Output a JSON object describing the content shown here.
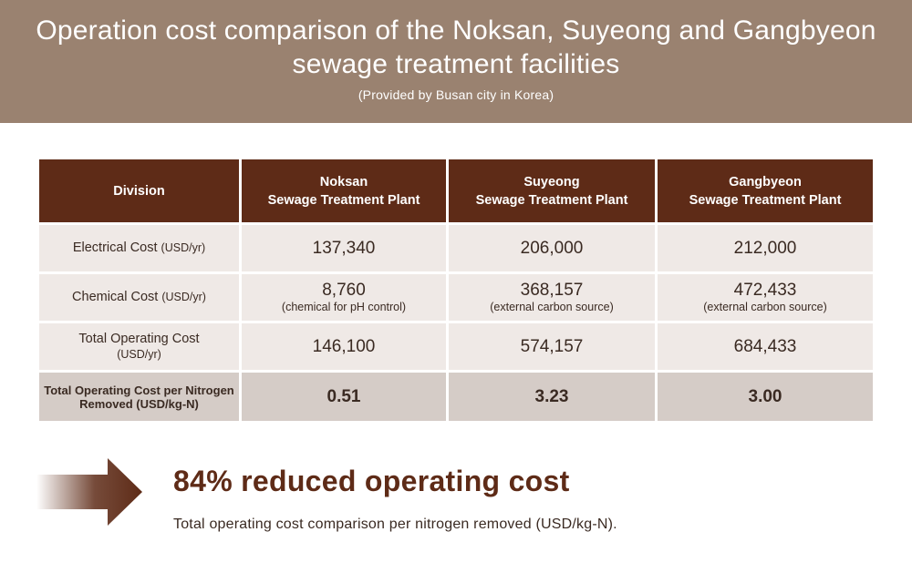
{
  "header": {
    "title_line1": "Operation cost comparison of the Noksan, Suyeong and Gangbyeon",
    "title_line2": "sewage treatment facilities",
    "subtitle": "(Provided by Busan city in Korea)"
  },
  "table": {
    "columns": [
      {
        "line1": "Division",
        "line2": ""
      },
      {
        "line1": "Noksan",
        "line2": "Sewage Treatment Plant"
      },
      {
        "line1": "Suyeong",
        "line2": "Sewage Treatment Plant"
      },
      {
        "line1": "Gangbyeon",
        "line2": "Sewage Treatment Plant"
      }
    ],
    "rows": [
      {
        "label": "Electrical Cost",
        "unit": "(USD/yr)",
        "values": [
          {
            "value": "137,340",
            "note": ""
          },
          {
            "value": "206,000",
            "note": ""
          },
          {
            "value": "212,000",
            "note": ""
          }
        ]
      },
      {
        "label": "Chemical Cost",
        "unit": "(USD/yr)",
        "values": [
          {
            "value": "8,760",
            "note": "(chemical for pH control)"
          },
          {
            "value": "368,157",
            "note": "(external carbon source)"
          },
          {
            "value": "472,433",
            "note": "(external carbon source)"
          }
        ]
      },
      {
        "label": "Total Operating Cost",
        "unit": "(USD/yr)",
        "values": [
          {
            "value": "146,100",
            "note": ""
          },
          {
            "value": "574,157",
            "note": ""
          },
          {
            "value": "684,433",
            "note": ""
          }
        ]
      },
      {
        "label": "Total Operating Cost per Nitrogen Removed (USD/kg-N)",
        "unit": "",
        "values": [
          {
            "value": "0.51",
            "note": ""
          },
          {
            "value": "3.23",
            "note": ""
          },
          {
            "value": "3.00",
            "note": ""
          }
        ]
      }
    ]
  },
  "summary": {
    "highlight": "84% reduced operating cost",
    "caption": "Total operating cost comparison per nitrogen removed (USD/kg-N)."
  },
  "colors": {
    "banner": "#9a8270",
    "header_cell": "#5e2b17",
    "row_cell": "#efe9e6",
    "total_row_cell": "#d5ccc7",
    "accent": "#5e2b17"
  },
  "icons": {
    "arrow": "right-arrow-icon"
  }
}
